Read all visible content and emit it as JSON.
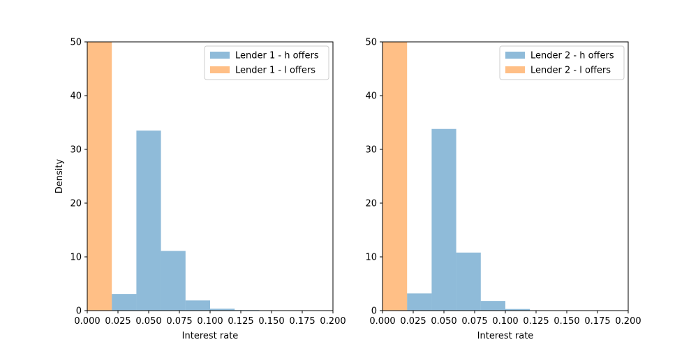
{
  "chart_data": [
    {
      "type": "bar",
      "subtype": "histogram",
      "title": "",
      "xlabel": "Interest rate",
      "ylabel": "Density",
      "xlim": [
        0.0,
        0.2
      ],
      "ylim": [
        0,
        50
      ],
      "xticks": [
        "0.000",
        "0.025",
        "0.050",
        "0.075",
        "0.100",
        "0.125",
        "0.150",
        "0.175",
        "0.200"
      ],
      "yticks": [
        "0",
        "10",
        "20",
        "30",
        "40",
        "50"
      ],
      "grid": false,
      "legend_position": "top-right",
      "series": [
        {
          "name": "Lender 1 - h offers",
          "color": "#1f77b4",
          "bin_edges": [
            0.02,
            0.04,
            0.06,
            0.08,
            0.1,
            0.12,
            0.14
          ],
          "values": [
            3.1,
            33.5,
            11.1,
            1.9,
            0.35,
            0.1
          ]
        },
        {
          "name": "Lender 1 - l offers",
          "color": "#ff7f0e",
          "bin_edges": [
            0.0,
            0.02
          ],
          "values": [
            50
          ]
        }
      ]
    },
    {
      "type": "bar",
      "subtype": "histogram",
      "title": "",
      "xlabel": "Interest rate",
      "ylabel": "",
      "xlim": [
        0.0,
        0.2
      ],
      "ylim": [
        0,
        50
      ],
      "xticks": [
        "0.000",
        "0.025",
        "0.050",
        "0.075",
        "0.100",
        "0.125",
        "0.150",
        "0.175",
        "0.200"
      ],
      "yticks": [
        "0",
        "10",
        "20",
        "30",
        "40",
        "50"
      ],
      "grid": false,
      "legend_position": "top-right",
      "series": [
        {
          "name": "Lender 2 - h offers",
          "color": "#1f77b4",
          "bin_edges": [
            0.02,
            0.04,
            0.06,
            0.08,
            0.1,
            0.12
          ],
          "values": [
            3.2,
            33.8,
            10.8,
            1.8,
            0.3
          ]
        },
        {
          "name": "Lender 2 - l offers",
          "color": "#ff7f0e",
          "bin_edges": [
            0.0,
            0.02
          ],
          "values": [
            50
          ]
        }
      ]
    }
  ]
}
